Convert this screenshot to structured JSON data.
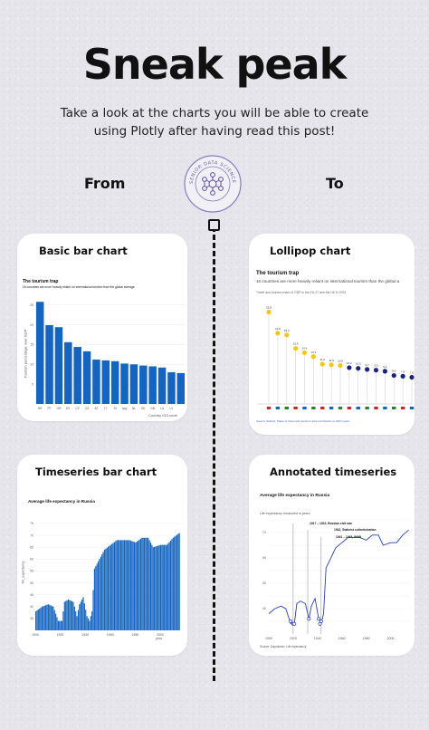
{
  "header": {
    "title": "Sneak peak",
    "subtitle_line1": "Take a look at the charts you will be able to create",
    "subtitle_line2": "using Plotly after having read this post!",
    "from_label": "From",
    "to_label": "To"
  },
  "logo": {
    "text": "SENIOR DATA SCIENCE LEAD"
  },
  "colors": {
    "bar_blue": "#1565c0",
    "lollipop_yellow": "#f5c518",
    "lollipop_navy": "#1a237e",
    "line_blue": "#2b3fae"
  },
  "cards": {
    "basic_bar": {
      "card_title": "Basic bar chart",
      "chart_title": "The tourism trap",
      "chart_subtitle": "16 countries are more heavily reliant on international tourism than the global average",
      "ylabel": "Tourism percentage over GDP",
      "xlabel": "Country ISO code"
    },
    "lollipop": {
      "card_title": "Lollipop chart",
      "chart_title": "The tourism trap",
      "chart_subtitle": "16 countries are more heavily reliant on international tourism than the global a",
      "chart_note": "Travel and tourism share of GDP in the EU-27 and the UK in 2023",
      "source": "Source: Statista, Share of travel and tourism's total contribution to GDP report"
    },
    "timeseries_bar": {
      "card_title": "Timeseries bar chart",
      "chart_title": "Average life expectancy in Russia",
      "ylabel": "life_expectancy",
      "xlabel": "year"
    },
    "annotated": {
      "card_title": "Annotated timeseries",
      "chart_title": "Average life expectancy in Russia",
      "chart_subtitle": "Life expectancy measured in years",
      "annotations": [
        "1917 – 1922, Russian civil war",
        "1932, Stalinist collectivization",
        "1941 – 1945, WWII"
      ],
      "source": "Source: Gapminder, Life expectancy"
    }
  },
  "chart_data": [
    {
      "type": "bar",
      "title": "The tourism trap",
      "subtitle": "16 countries are more heavily reliant on international tourism than the global average",
      "xlabel": "Country ISO code",
      "ylabel": "Tourism percentage over GDP",
      "categories": [
        "HR",
        "PT",
        "GR",
        "ES",
        "CY",
        "CZ",
        "AT",
        "IT",
        "SI",
        "Avg",
        "NL",
        "EE",
        "GB",
        "LU",
        "LV",
        ""
      ],
      "values": [
        25.8,
        19.9,
        19.4,
        15.6,
        14.4,
        13.3,
        11.2,
        11.0,
        10.8,
        10.2,
        10.0,
        9.7,
        9.5,
        9.2,
        8.0,
        7.8
      ],
      "ylim": [
        0,
        27
      ],
      "yticks": [
        5,
        10,
        15,
        20,
        25
      ]
    },
    {
      "type": "scatter",
      "title": "The tourism trap",
      "values": [
        25.8,
        19.9,
        19.4,
        15.6,
        14.4,
        13.3,
        11.2,
        11.0,
        10.8,
        10.2,
        10.0,
        9.7,
        9.5,
        9.2,
        8.0,
        7.8,
        7.5
      ],
      "labels": [
        "25.8",
        "19.9",
        "19.4",
        "15.6",
        "14.4",
        "13.3",
        "11.2",
        "11.0",
        "10.8",
        "10.2",
        "10.0",
        "9.7",
        "9.5",
        "9.2",
        "8.0",
        "7.8",
        "7.5"
      ],
      "highlight_count": 9,
      "ylim": [
        0,
        28
      ]
    },
    {
      "type": "bar",
      "title": "Average life expectancy in Russia",
      "xlabel": "year",
      "ylabel": "life_expectancy",
      "ylim": [
        30,
        75
      ],
      "yticks": [
        35,
        40,
        45,
        50,
        55,
        60,
        65,
        70,
        75
      ],
      "xticks": [
        "1900",
        "1920",
        "1940",
        "1960",
        "1980",
        "2000"
      ],
      "x": [
        1900,
        1905,
        1910,
        1914,
        1918,
        1921,
        1923,
        1926,
        1930,
        1933,
        1935,
        1938,
        1941,
        1943,
        1945,
        1947,
        1950,
        1955,
        1960,
        1965,
        1970,
        1975,
        1980,
        1985,
        1990,
        1994,
        2000,
        2005,
        2010,
        2015
      ],
      "values": [
        38,
        40,
        41,
        40,
        34,
        34,
        42,
        43,
        42,
        36,
        41,
        44,
        36,
        34,
        38,
        56,
        59,
        64,
        66,
        68,
        68,
        68,
        67,
        69,
        69,
        65,
        66,
        66,
        69,
        71
      ]
    },
    {
      "type": "line",
      "title": "Average life expectancy in Russia",
      "ylim": [
        30,
        75
      ],
      "yticks": [
        35,
        40,
        45,
        50,
        55,
        60,
        65,
        70,
        75
      ],
      "xticks": [
        "1900",
        "1920",
        "1940",
        "1960",
        "1980",
        "2000"
      ],
      "x": [
        1900,
        1905,
        1910,
        1914,
        1918,
        1921,
        1923,
        1926,
        1930,
        1933,
        1935,
        1938,
        1941,
        1943,
        1945,
        1947,
        1950,
        1955,
        1960,
        1965,
        1970,
        1975,
        1980,
        1985,
        1990,
        1994,
        2000,
        2005,
        2010,
        2015
      ],
      "y": [
        38,
        40,
        41,
        40,
        34,
        34,
        42,
        43,
        42,
        36,
        41,
        44,
        36,
        34,
        38,
        56,
        59,
        64,
        66,
        68,
        68,
        68,
        67,
        69,
        69,
        65,
        66,
        66,
        69,
        71
      ],
      "markers_x": [
        1918,
        1920,
        1921,
        1933,
        1941,
        1942,
        1943
      ],
      "markers_y": [
        35,
        34,
        34,
        36,
        36,
        34,
        35
      ]
    }
  ]
}
